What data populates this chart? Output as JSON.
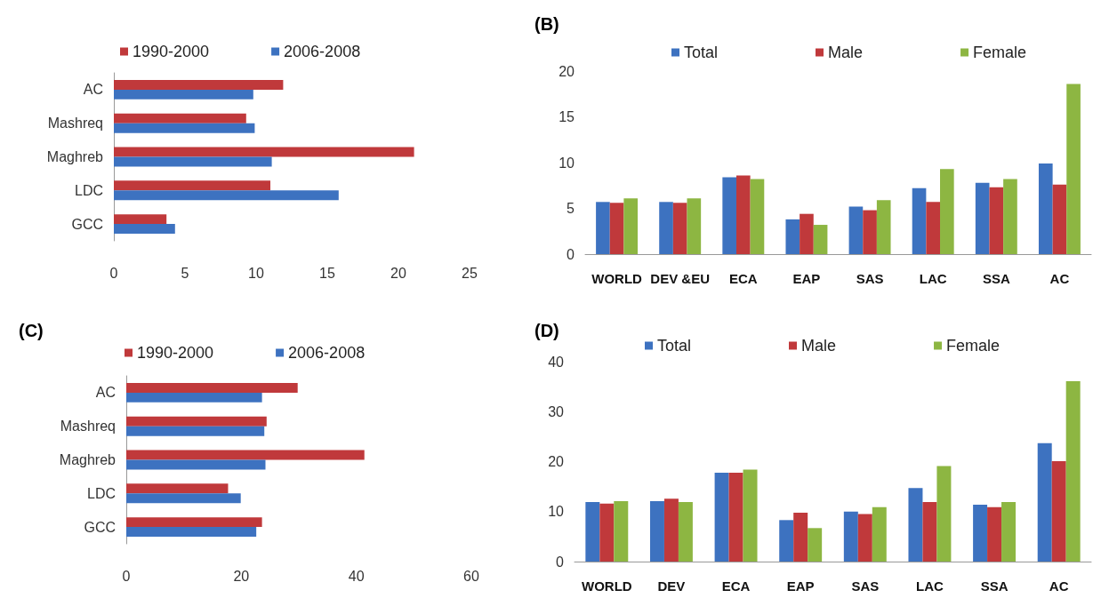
{
  "chart_data": [
    {
      "type": "bar",
      "orientation": "horizontal",
      "legend": "top",
      "categories": [
        "AC",
        "Mashreq",
        "Maghreb",
        "LDC",
        "GCC"
      ],
      "xlim": [
        0,
        25
      ],
      "xticks": [
        0,
        5,
        10,
        15,
        20,
        25
      ],
      "series": [
        {
          "name": "1990-2000",
          "color": "#c0393b",
          "values": [
            11.9,
            9.3,
            21.1,
            11.0,
            3.7
          ]
        },
        {
          "name": "2006-2008",
          "color": "#3d72c0",
          "values": [
            9.8,
            9.9,
            11.1,
            15.8,
            4.3
          ]
        }
      ]
    },
    {
      "type": "bar",
      "title": "(B)",
      "legend": "top",
      "categories": [
        "WORLD",
        "DEV &EU",
        "ECA",
        "EAP",
        "SAS",
        "LAC",
        "SSA",
        "AC"
      ],
      "ylim": [
        0,
        20
      ],
      "yticks": [
        0,
        5,
        10,
        15,
        20
      ],
      "series": [
        {
          "name": "Total",
          "color": "#3d72c0",
          "values": [
            5.7,
            5.7,
            8.4,
            3.8,
            5.2,
            7.2,
            7.8,
            9.9
          ]
        },
        {
          "name": "Male",
          "color": "#c0393b",
          "values": [
            5.6,
            5.6,
            8.6,
            4.4,
            4.8,
            5.7,
            7.3,
            7.6
          ]
        },
        {
          "name": "Female",
          "color": "#8db642",
          "values": [
            6.1,
            6.1,
            8.2,
            3.2,
            5.9,
            9.3,
            8.2,
            18.6
          ]
        }
      ]
    },
    {
      "type": "bar",
      "title": "(C)",
      "orientation": "horizontal",
      "legend": "top",
      "categories": [
        "AC",
        "Mashreq",
        "Maghreb",
        "LDC",
        "GCC"
      ],
      "xlim": [
        0,
        60
      ],
      "xticks": [
        0,
        20,
        40,
        60
      ],
      "series": [
        {
          "name": "1990-2000",
          "color": "#c0393b",
          "values": [
            29.8,
            24.4,
            41.4,
            17.7,
            23.6
          ]
        },
        {
          "name": "2006-2008",
          "color": "#3d72c0",
          "values": [
            23.6,
            24.0,
            24.2,
            19.9,
            22.6
          ]
        }
      ]
    },
    {
      "type": "bar",
      "title": "(D)",
      "legend": "top",
      "categories": [
        "WORLD",
        "DEV",
        "ECA",
        "EAP",
        "SAS",
        "LAC",
        "SSA",
        "AC"
      ],
      "ylim": [
        0,
        40
      ],
      "yticks": [
        0,
        10,
        20,
        30,
        40
      ],
      "series": [
        {
          "name": "Total",
          "color": "#3d72c0",
          "values": [
            11.9,
            12.1,
            17.8,
            8.3,
            10.0,
            14.7,
            11.4,
            23.7
          ]
        },
        {
          "name": "Male",
          "color": "#c0393b",
          "values": [
            11.6,
            12.6,
            17.8,
            9.8,
            9.5,
            11.9,
            10.9,
            20.1
          ]
        },
        {
          "name": "Female",
          "color": "#8db642",
          "values": [
            12.1,
            11.9,
            18.4,
            6.7,
            10.9,
            19.1,
            11.9,
            36.1
          ]
        }
      ]
    }
  ]
}
